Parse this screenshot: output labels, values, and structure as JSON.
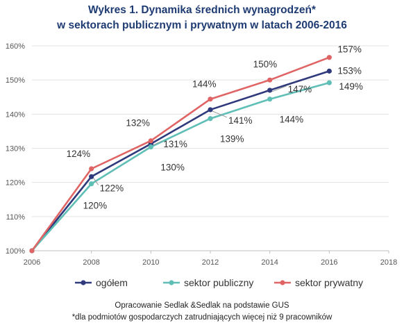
{
  "title_line1": "Wykres 1. Dynamika średnich wynagrodzeń*",
  "title_line2": "w sektorach publicznym i prywatnym w latach 2006-2016",
  "footer_line1": "Opracowanie Sedlak &Sedlak na podstawie GUS",
  "footer_line2": "*dla podmiotów gospodarczych zatrudniających więcej niż 9 pracowników",
  "chart_data": {
    "type": "line",
    "x": [
      2006,
      2008,
      2010,
      2012,
      2014,
      2016
    ],
    "xlim": [
      2006,
      2018
    ],
    "xticks": [
      "2006",
      "2008",
      "2010",
      "2012",
      "2014",
      "2016",
      "2018"
    ],
    "ylim": [
      100,
      160
    ],
    "yticks": [
      "100%",
      "110%",
      "120%",
      "130%",
      "140%",
      "150%",
      "160%"
    ],
    "grid": "horizontal",
    "legend": "bottom",
    "series": [
      {
        "name": "ogółem",
        "color": "#2e3a7c",
        "values": [
          100,
          121.7,
          131.3,
          141.3,
          147.0,
          152.6
        ],
        "labels": [
          "",
          "122%",
          "131%",
          "141%",
          "147%",
          "153%"
        ]
      },
      {
        "name": "sektor publiczny",
        "color": "#5fbfb6",
        "values": [
          100,
          119.6,
          130.4,
          138.7,
          144.4,
          149.2
        ],
        "labels": [
          "",
          "120%",
          "130%",
          "139%",
          "144%",
          "149%"
        ]
      },
      {
        "name": "sektor prywatny",
        "color": "#e06464",
        "values": [
          100,
          124.0,
          132.2,
          144.4,
          150.0,
          156.6
        ],
        "labels": [
          "",
          "124%",
          "132%",
          "144%",
          "150%",
          "157%"
        ]
      }
    ]
  }
}
